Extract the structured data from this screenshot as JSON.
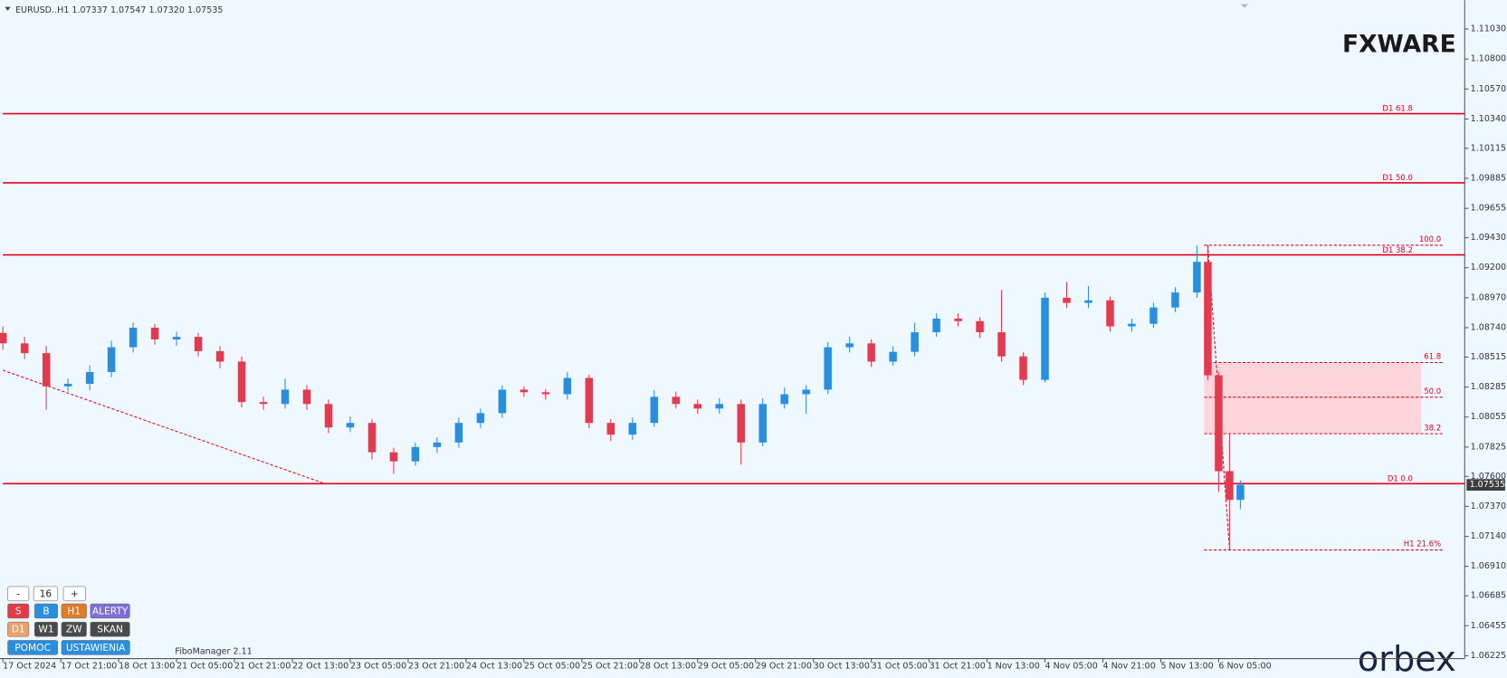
{
  "header": {
    "symbol": "EURUSD..H1",
    "ohlc": [
      "1.07337",
      "1.07547",
      "1.07320",
      "1.07535"
    ]
  },
  "logos": {
    "top": "FXWARE",
    "bottom": "orbex"
  },
  "indicator": "FiboManager 2.11",
  "panel": {
    "buttons": [
      "-",
      "16",
      "+",
      "S",
      "B",
      "H1",
      "ALERTY",
      "D1",
      "W1",
      "ZW",
      "SKAN",
      "POMOC",
      "USTAWIENIA"
    ]
  },
  "chart_data": {
    "type": "candlestick",
    "up_color": "#2a8ee0",
    "down_color": "#e33a4f",
    "level_color": "#e3001b",
    "x": [
      0,
      6,
      12,
      18,
      24,
      30,
      36,
      42,
      48,
      54,
      60,
      66,
      72,
      78,
      84,
      90,
      96,
      102,
      108,
      114,
      120,
      126,
      132,
      138,
      144,
      150,
      156,
      162,
      168,
      174,
      180,
      186,
      192,
      198,
      204,
      210,
      216,
      222,
      228,
      234,
      240,
      246,
      252,
      258,
      264,
      270,
      276,
      282,
      288,
      294,
      300,
      306,
      312,
      318,
      324,
      330,
      333,
      336,
      339,
      342
    ],
    "open": [
      1.087,
      1.0862,
      1.08545,
      1.0829,
      1.0831,
      1.084,
      1.0859,
      1.0874,
      1.0865,
      1.0867,
      1.0856,
      1.0848,
      1.0817,
      1.08155,
      1.08265,
      1.08155,
      1.07975,
      1.0801,
      1.07785,
      1.07715,
      1.07825,
      1.0786,
      1.0801,
      1.08085,
      1.08265,
      1.08245,
      1.0823,
      1.08355,
      1.0801,
      1.0792,
      1.0801,
      1.0821,
      1.08155,
      1.0812,
      1.08155,
      1.0786,
      1.08155,
      1.0823,
      1.08265,
      1.0859,
      1.0862,
      1.0848,
      1.08555,
      1.08705,
      1.0881,
      1.0879,
      1.08705,
      1.0852,
      1.0834,
      1.0897,
      1.0893,
      1.0895,
      1.0875,
      1.0877,
      1.08895,
      1.0901,
      1.09245,
      1.08375,
      1.0764,
      1.0742
    ],
    "high": [
      1.0875,
      1.0867,
      1.086,
      1.0835,
      1.0845,
      1.0864,
      1.0878,
      1.0877,
      1.0871,
      1.087,
      1.086,
      1.0852,
      1.0821,
      1.0835,
      1.083,
      1.0819,
      1.0806,
      1.0804,
      1.0782,
      1.0786,
      1.079,
      1.0805,
      1.0812,
      1.083,
      1.0829,
      1.0827,
      1.084,
      1.0838,
      1.0804,
      1.0805,
      1.0826,
      1.0825,
      1.0819,
      1.082,
      1.0819,
      1.082,
      1.0828,
      1.083,
      1.0863,
      1.0867,
      1.0865,
      1.086,
      1.0878,
      1.0885,
      1.0885,
      1.0882,
      1.0903,
      1.0855,
      1.0901,
      1.0909,
      1.0906,
      1.0898,
      1.0881,
      1.0893,
      1.0905,
      1.0937,
      1.0936,
      1.084,
      1.0792,
      1.0757
    ],
    "low": [
      1.0857,
      1.085,
      1.0811,
      1.0825,
      1.0826,
      1.0836,
      1.0855,
      1.0861,
      1.086,
      1.0852,
      1.0843,
      1.0813,
      1.0811,
      1.0812,
      1.0811,
      1.0793,
      1.0794,
      1.0773,
      1.0762,
      1.0768,
      1.0778,
      1.0782,
      1.0797,
      1.0805,
      1.0821,
      1.0819,
      1.0819,
      1.0797,
      1.0787,
      1.0788,
      1.0798,
      1.0812,
      1.0808,
      1.0808,
      1.0769,
      1.0783,
      1.0812,
      1.0808,
      1.0823,
      1.0855,
      1.0844,
      1.0845,
      1.0852,
      1.0867,
      1.0875,
      1.0866,
      1.0848,
      1.083,
      1.0832,
      1.0889,
      1.0889,
      1.0871,
      1.0871,
      1.0874,
      1.0886,
      1.0897,
      1.0834,
      1.0748,
      1.0704,
      1.0735
    ],
    "close": [
      1.0862,
      1.08545,
      1.0829,
      1.0831,
      1.084,
      1.0859,
      1.0874,
      1.0865,
      1.0867,
      1.0856,
      1.0848,
      1.0817,
      1.08155,
      1.08265,
      1.08155,
      1.07975,
      1.0801,
      1.07785,
      1.07715,
      1.07825,
      1.0786,
      1.0801,
      1.08085,
      1.08265,
      1.08245,
      1.0823,
      1.08355,
      1.0801,
      1.0792,
      1.0801,
      1.0821,
      1.08155,
      1.0812,
      1.08155,
      1.0786,
      1.08155,
      1.0823,
      1.08265,
      1.0859,
      1.0862,
      1.0848,
      1.08555,
      1.08705,
      1.0881,
      1.0879,
      1.08705,
      1.0852,
      1.0834,
      1.0897,
      1.0893,
      1.0895,
      1.0875,
      1.0877,
      1.08895,
      1.0901,
      1.09245,
      1.08375,
      1.0764,
      1.0742,
      1.07535
    ],
    "xlim": [
      0,
      404
    ],
    "xticks": [
      {
        "value": 0,
        "label": "17 Oct 2024"
      },
      {
        "value": 16,
        "label": "17 Oct 21:00"
      },
      {
        "value": 32,
        "label": "18 Oct 13:00"
      },
      {
        "value": 48,
        "label": "21 Oct 05:00"
      },
      {
        "value": 64,
        "label": "21 Oct 21:00"
      },
      {
        "value": 80,
        "label": "22 Oct 13:00"
      },
      {
        "value": 96,
        "label": "23 Oct 05:00"
      },
      {
        "value": 112,
        "label": "23 Oct 21:00"
      },
      {
        "value": 128,
        "label": "24 Oct 13:00"
      },
      {
        "value": 144,
        "label": "25 Oct 05:00"
      },
      {
        "value": 160,
        "label": "25 Oct 21:00"
      },
      {
        "value": 176,
        "label": "28 Oct 13:00"
      },
      {
        "value": 192,
        "label": "29 Oct 05:00"
      },
      {
        "value": 208,
        "label": "29 Oct 21:00"
      },
      {
        "value": 224,
        "label": "30 Oct 13:00"
      },
      {
        "value": 240,
        "label": "31 Oct 05:00"
      },
      {
        "value": 256,
        "label": "31 Oct 21:00"
      },
      {
        "value": 272,
        "label": "1 Nov 13:00"
      },
      {
        "value": 288,
        "label": "4 Nov 05:00"
      },
      {
        "value": 304,
        "label": "4 Nov 21:00"
      },
      {
        "value": 320,
        "label": "5 Nov 13:00"
      },
      {
        "value": 336,
        "label": "6 Nov 05:00"
      }
    ],
    "ylim": [
      1.06203,
      1.11251
    ],
    "yticks": [
      {
        "value": 1.1103,
        "label": "1.11030"
      },
      {
        "value": 1.108,
        "label": "1.10800"
      },
      {
        "value": 1.1057,
        "label": "1.10570"
      },
      {
        "value": 1.1034,
        "label": "1.10340"
      },
      {
        "value": 1.10115,
        "label": "1.10115"
      },
      {
        "value": 1.09885,
        "label": "1.09885"
      },
      {
        "value": 1.09655,
        "label": "1.09655"
      },
      {
        "value": 1.0943,
        "label": "1.09430"
      },
      {
        "value": 1.092,
        "label": "1.09200"
      },
      {
        "value": 1.0897,
        "label": "1.08970"
      },
      {
        "value": 1.0874,
        "label": "1.08740"
      },
      {
        "value": 1.08515,
        "label": "1.08515"
      },
      {
        "value": 1.08285,
        "label": "1.08285"
      },
      {
        "value": 1.08055,
        "label": "1.08055"
      },
      {
        "value": 1.07825,
        "label": "1.07825"
      },
      {
        "value": 1.076,
        "label": "1.07600"
      },
      {
        "value": 1.0737,
        "label": "1.07370"
      },
      {
        "value": 1.0714,
        "label": "1.07140"
      },
      {
        "value": 1.0691,
        "label": "1.06910"
      },
      {
        "value": 1.06685,
        "label": "1.06685"
      },
      {
        "value": 1.06455,
        "label": "1.06455"
      },
      {
        "value": 1.06225,
        "label": "1.06225"
      }
    ],
    "levels": [
      {
        "label": "D1 61.8",
        "value": 1.10381
      },
      {
        "label": "D1 50.0",
        "value": 1.09851
      },
      {
        "label": "D1 38.2",
        "value": 1.09298
      },
      {
        "label": "D1 0.0",
        "value": 1.07544
      }
    ],
    "fibo": [
      {
        "label": "100.0",
        "value": 1.09372
      },
      {
        "label": "61.8",
        "value": 1.08473
      },
      {
        "label": "50.0",
        "value": 1.08207
      },
      {
        "label": "38.2",
        "value": 1.07927
      },
      {
        "label": "H1 21.6%",
        "value": 1.07036
      }
    ],
    "fibo_x": [
      332,
      398
    ],
    "zone_x": [
      332,
      392
    ],
    "trendline": {
      "x": [
        0,
        89
      ],
      "y": [
        1.08414,
        1.07544
      ]
    },
    "current_price": {
      "value": 1.07535,
      "label": "1.07535"
    }
  }
}
